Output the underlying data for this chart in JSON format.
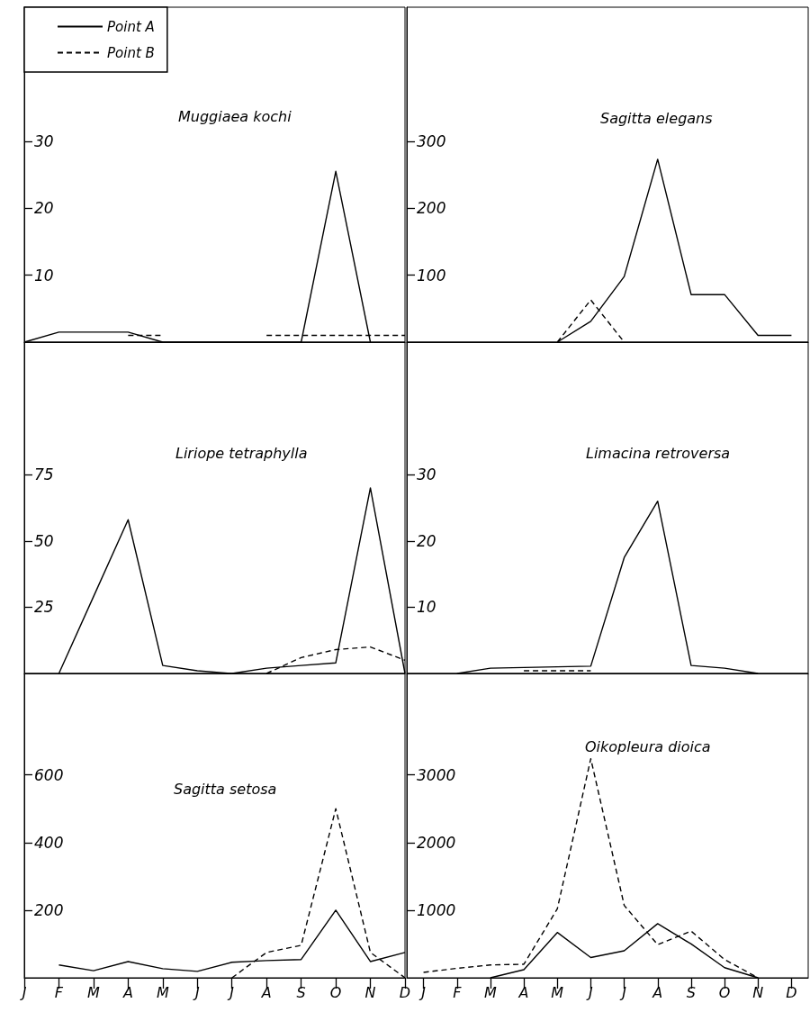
{
  "chart_data": [
    {
      "type": "line",
      "title": "Muggiaea kochi",
      "categories": [
        null,
        null,
        null,
        null,
        null,
        null,
        null,
        null,
        null,
        null,
        null,
        null
      ],
      "ylim": [
        0,
        50
      ],
      "yticks": [
        10,
        20,
        30
      ],
      "legend": "top left",
      "tick_labels": "y",
      "series": [
        {
          "name": "Point A",
          "color": "#000000",
          "line_style": "solid",
          "values": [
            0,
            1.5,
            1.5,
            1.5,
            0,
            0,
            0,
            0,
            0,
            25.5,
            0,
            null
          ]
        },
        {
          "name": "Point B",
          "color": "#000000",
          "line_style": "dashed",
          "values": [
            null,
            null,
            null,
            1,
            1,
            null,
            null,
            1,
            1,
            1,
            1,
            1
          ]
        }
      ]
    },
    {
      "type": "line",
      "title": "Sagitta elegans",
      "categories": [
        null,
        null,
        null,
        null,
        null,
        null,
        null,
        null,
        null,
        null,
        null,
        null
      ],
      "ylim": [
        0,
        500
      ],
      "yticks": [
        100,
        200,
        300
      ],
      "tick_labels": "y",
      "series": [
        {
          "color": "#000000",
          "line_style": "solid",
          "values": [
            null,
            null,
            null,
            null,
            0,
            31,
            98,
            273,
            71,
            71,
            10,
            10
          ]
        },
        {
          "color": "#000000",
          "line_style": "dashed",
          "values": [
            null,
            null,
            null,
            null,
            0,
            63,
            0,
            null,
            null,
            null,
            null,
            null
          ]
        }
      ]
    },
    {
      "type": "line",
      "title": "Liriope tetraphylla",
      "categories": [
        null,
        null,
        null,
        null,
        null,
        null,
        null,
        null,
        null,
        null,
        null,
        null
      ],
      "ylim": [
        0,
        125
      ],
      "yticks": [
        25,
        50,
        75
      ],
      "tick_labels": "y",
      "series": [
        {
          "color": "#000000",
          "line_style": "solid",
          "values": [
            null,
            0,
            29,
            58,
            3,
            1,
            0,
            2,
            3,
            4,
            70,
            0
          ]
        },
        {
          "color": "#000000",
          "line_style": "dashed",
          "values": [
            null,
            null,
            null,
            null,
            null,
            null,
            null,
            0,
            6,
            9,
            10,
            5
          ]
        }
      ]
    },
    {
      "type": "line",
      "title": "Limacina retroversa",
      "categories": [
        null,
        null,
        null,
        null,
        null,
        null,
        null,
        null,
        null,
        null,
        null,
        null
      ],
      "ylim": [
        0,
        50
      ],
      "yticks": [
        10,
        20,
        30
      ],
      "tick_labels": "y",
      "series": [
        {
          "color": "#000000",
          "line_style": "solid",
          "values": [
            null,
            0,
            0.8,
            0.9,
            1,
            1.1,
            17.5,
            26,
            1.2,
            0.8,
            0,
            null
          ]
        },
        {
          "color": "#000000",
          "line_style": "dashed",
          "values": [
            null,
            null,
            null,
            0.4,
            0.4,
            0.4,
            null,
            null,
            null,
            null,
            null,
            null
          ]
        }
      ]
    },
    {
      "type": "line",
      "title": "Sagitta setosa",
      "categories": [
        "J",
        "F",
        "M",
        "A",
        "M",
        "J",
        "J",
        "A",
        "S",
        "O",
        "N",
        "D"
      ],
      "ylim": [
        0,
        900
      ],
      "yticks": [
        200,
        400,
        600
      ],
      "series": [
        {
          "color": "#000000",
          "line_style": "solid",
          "values": [
            null,
            38,
            21,
            48,
            27,
            19,
            46,
            51,
            54,
            200,
            48,
            75
          ]
        },
        {
          "color": "#000000",
          "line_style": "dashed",
          "values": [
            null,
            null,
            null,
            null,
            null,
            null,
            0,
            75,
            96,
            500,
            75,
            0
          ]
        }
      ]
    },
    {
      "type": "line",
      "title": "Oikopleura dioica",
      "categories": [
        "J",
        "F",
        "M",
        "A",
        "M",
        "J",
        "J",
        "A",
        "S",
        "O",
        "N",
        "D"
      ],
      "ylim": [
        0,
        4500
      ],
      "yticks": [
        1000,
        2000,
        3000
      ],
      "series": [
        {
          "color": "#000000",
          "line_style": "solid",
          "values": [
            null,
            null,
            0,
            120,
            670,
            300,
            400,
            800,
            500,
            150,
            0,
            null
          ]
        },
        {
          "color": "#000000",
          "line_style": "dashed",
          "values": [
            80,
            140,
            190,
            200,
            1020,
            3240,
            1070,
            490,
            690,
            270,
            0,
            null
          ]
        }
      ]
    }
  ]
}
